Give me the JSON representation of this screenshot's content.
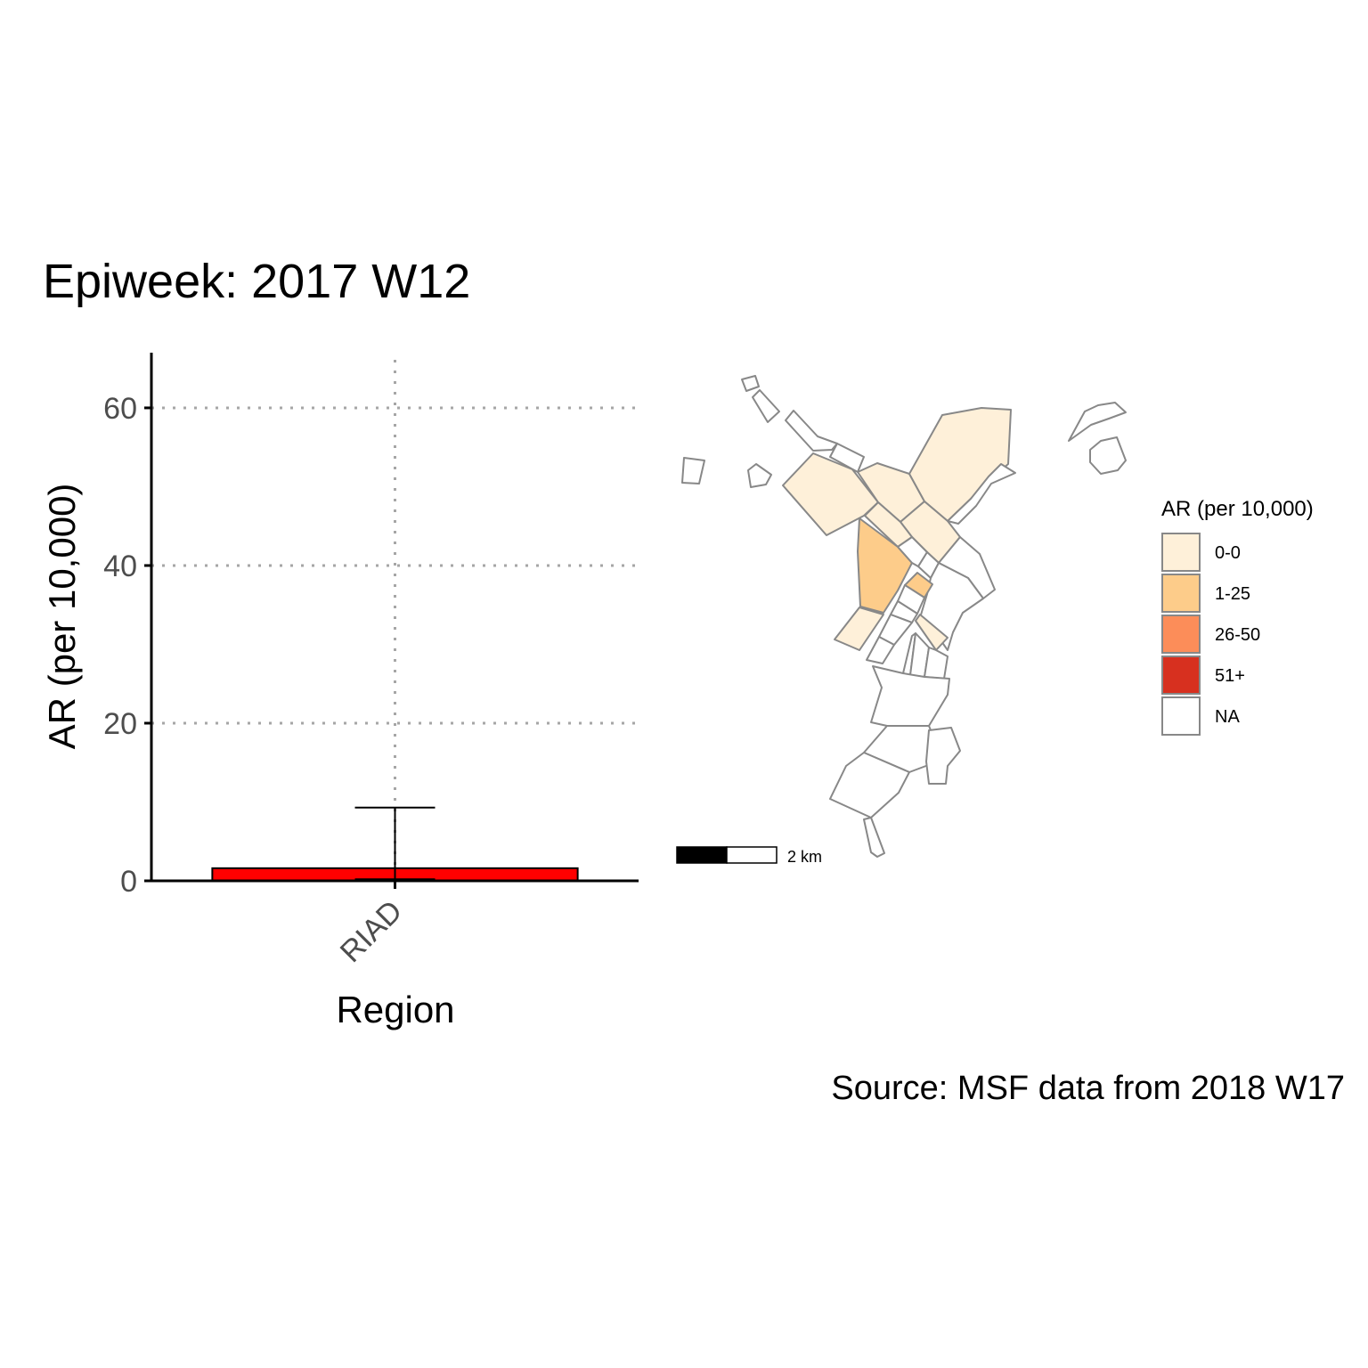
{
  "title": "Epiweek: 2017 W12",
  "caption": "Source: MSF data from 2018 W17",
  "chart_data": {
    "type": "bar",
    "xlabel": "Region",
    "ylabel": "AR (per 10,000)",
    "categories": [
      "RIAD"
    ],
    "values": [
      1.6
    ],
    "error_bars": [
      {
        "low": 0.2,
        "high": 9.3
      }
    ],
    "ylim": [
      0,
      67
    ],
    "yticks": [
      0,
      20,
      40,
      60
    ],
    "grid": true,
    "colors": {
      "bar": "#ff0000",
      "grid": "#a6a6a6",
      "axis": "#000000"
    }
  },
  "map": {
    "scale_bar_label": "2 km",
    "legend": {
      "title": "AR (per 10,000)",
      "items": [
        {
          "label": "0-0",
          "color": "#fef0d9"
        },
        {
          "label": "1-25",
          "color": "#fdcc8a"
        },
        {
          "label": "26-50",
          "color": "#fc8d59"
        },
        {
          "label": "51+",
          "color": "#d7301f"
        },
        {
          "label": "NA",
          "color": "#ffffff"
        }
      ]
    }
  }
}
